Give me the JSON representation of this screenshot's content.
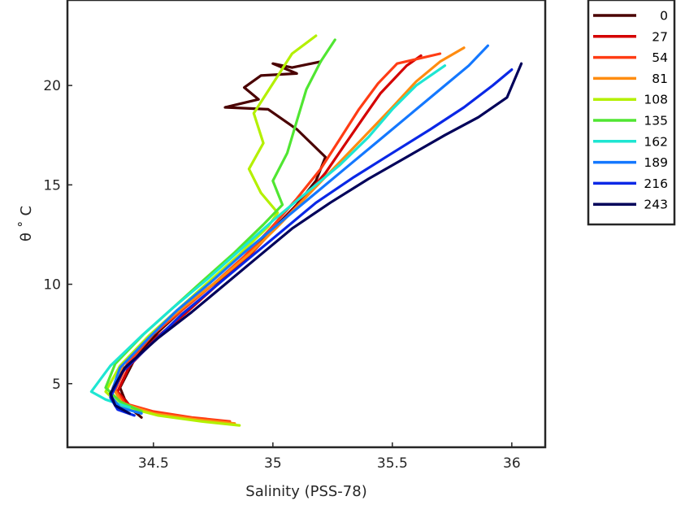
{
  "chart_data": {
    "type": "line",
    "title": "",
    "xlabel": "Salinity (PSS-78)",
    "ylabel": "θ ˚ C",
    "xlim": [
      34.14,
      36.14
    ],
    "ylim": [
      1.8,
      24.3
    ],
    "xticks": [
      34.5,
      35,
      35.5,
      36
    ],
    "xtick_labels": [
      "34.5",
      "35",
      "35.5",
      "36"
    ],
    "yticks": [
      5,
      10,
      15,
      20
    ],
    "ytick_labels": [
      "5",
      "10",
      "15",
      "20"
    ],
    "grid": false,
    "legend_position": "outside-top-right",
    "series": [
      {
        "name": "0",
        "color": "#4a0000",
        "points": [
          [
            34.45,
            3.3
          ],
          [
            34.42,
            3.6
          ],
          [
            34.38,
            4.2
          ],
          [
            34.36,
            4.8
          ],
          [
            34.42,
            6.2
          ],
          [
            34.52,
            7.6
          ],
          [
            34.62,
            8.7
          ],
          [
            34.73,
            9.8
          ],
          [
            34.86,
            11.0
          ],
          [
            34.97,
            12.4
          ],
          [
            35.1,
            14.0
          ],
          [
            35.18,
            15.2
          ],
          [
            35.22,
            16.4
          ],
          [
            35.1,
            17.8
          ],
          [
            34.98,
            18.8
          ],
          [
            34.8,
            18.9
          ],
          [
            34.94,
            19.3
          ],
          [
            34.88,
            19.9
          ],
          [
            34.95,
            20.5
          ],
          [
            35.1,
            20.6
          ],
          [
            35.0,
            21.1
          ],
          [
            35.08,
            20.9
          ],
          [
            35.2,
            21.2
          ]
        ]
      },
      {
        "name": "27",
        "color": "#d40000",
        "points": [
          [
            34.8,
            3.0
          ],
          [
            34.66,
            3.2
          ],
          [
            34.52,
            3.5
          ],
          [
            34.4,
            3.9
          ],
          [
            34.35,
            4.6
          ],
          [
            34.4,
            5.9
          ],
          [
            34.52,
            7.4
          ],
          [
            34.64,
            8.6
          ],
          [
            34.76,
            9.9
          ],
          [
            34.89,
            11.3
          ],
          [
            35.0,
            12.7
          ],
          [
            35.12,
            14.2
          ],
          [
            35.22,
            15.6
          ],
          [
            35.3,
            17.0
          ],
          [
            35.38,
            18.4
          ],
          [
            35.45,
            19.6
          ],
          [
            35.56,
            21.0
          ],
          [
            35.62,
            21.5
          ]
        ]
      },
      {
        "name": "54",
        "color": "#ff3c14",
        "points": [
          [
            34.82,
            3.1
          ],
          [
            34.66,
            3.3
          ],
          [
            34.5,
            3.6
          ],
          [
            34.38,
            4.0
          ],
          [
            34.34,
            4.7
          ],
          [
            34.39,
            6.0
          ],
          [
            34.5,
            7.5
          ],
          [
            34.62,
            8.7
          ],
          [
            34.75,
            10.0
          ],
          [
            34.88,
            11.4
          ],
          [
            34.99,
            12.8
          ],
          [
            35.1,
            14.3
          ],
          [
            35.2,
            15.8
          ],
          [
            35.28,
            17.3
          ],
          [
            35.36,
            18.8
          ],
          [
            35.44,
            20.1
          ],
          [
            35.52,
            21.1
          ],
          [
            35.7,
            21.6
          ]
        ]
      },
      {
        "name": "81",
        "color": "#ff8c10",
        "points": [
          [
            34.84,
            3.0
          ],
          [
            34.68,
            3.2
          ],
          [
            34.5,
            3.5
          ],
          [
            34.37,
            4.0
          ],
          [
            34.33,
            4.8
          ],
          [
            34.38,
            6.1
          ],
          [
            34.5,
            7.6
          ],
          [
            34.62,
            8.8
          ],
          [
            34.76,
            10.1
          ],
          [
            34.9,
            11.5
          ],
          [
            35.02,
            12.9
          ],
          [
            35.14,
            14.4
          ],
          [
            35.26,
            15.9
          ],
          [
            35.38,
            17.4
          ],
          [
            35.5,
            18.9
          ],
          [
            35.6,
            20.2
          ],
          [
            35.7,
            21.2
          ],
          [
            35.8,
            21.9
          ]
        ]
      },
      {
        "name": "108",
        "color": "#b4f000",
        "points": [
          [
            34.86,
            2.9
          ],
          [
            34.7,
            3.1
          ],
          [
            34.52,
            3.4
          ],
          [
            34.36,
            3.9
          ],
          [
            34.3,
            4.6
          ],
          [
            34.36,
            5.9
          ],
          [
            34.48,
            7.4
          ],
          [
            34.6,
            8.7
          ],
          [
            34.72,
            10.0
          ],
          [
            34.86,
            11.5
          ],
          [
            34.98,
            12.9
          ],
          [
            35.02,
            13.6
          ],
          [
            34.95,
            14.6
          ],
          [
            34.9,
            15.8
          ],
          [
            34.96,
            17.1
          ],
          [
            34.92,
            18.6
          ],
          [
            35.0,
            20.1
          ],
          [
            35.08,
            21.6
          ],
          [
            35.18,
            22.5
          ]
        ]
      },
      {
        "name": "135",
        "color": "#50e632",
        "points": [
          [
            34.45,
            3.6
          ],
          [
            34.36,
            4.1
          ],
          [
            34.3,
            4.8
          ],
          [
            34.34,
            6.0
          ],
          [
            34.46,
            7.5
          ],
          [
            34.58,
            8.8
          ],
          [
            34.7,
            10.1
          ],
          [
            34.84,
            11.6
          ],
          [
            34.96,
            13.0
          ],
          [
            35.04,
            14.0
          ],
          [
            35.0,
            15.2
          ],
          [
            35.06,
            16.6
          ],
          [
            35.1,
            18.2
          ],
          [
            35.14,
            19.8
          ],
          [
            35.2,
            21.2
          ],
          [
            35.26,
            22.3
          ]
        ]
      },
      {
        "name": "162",
        "color": "#1ee6d2",
        "points": [
          [
            34.4,
            3.8
          ],
          [
            34.3,
            4.2
          ],
          [
            34.24,
            4.6
          ],
          [
            34.32,
            5.9
          ],
          [
            34.45,
            7.4
          ],
          [
            34.58,
            8.8
          ],
          [
            34.72,
            10.2
          ],
          [
            34.86,
            11.7
          ],
          [
            35.0,
            13.2
          ],
          [
            35.14,
            14.6
          ],
          [
            35.28,
            16.0
          ],
          [
            35.4,
            17.4
          ],
          [
            35.5,
            18.8
          ],
          [
            35.6,
            20.0
          ],
          [
            35.72,
            21.0
          ]
        ]
      },
      {
        "name": "189",
        "color": "#1478ff",
        "points": [
          [
            34.45,
            3.5
          ],
          [
            34.36,
            3.8
          ],
          [
            34.32,
            4.4
          ],
          [
            34.36,
            5.8
          ],
          [
            34.48,
            7.3
          ],
          [
            34.6,
            8.7
          ],
          [
            34.74,
            10.1
          ],
          [
            34.88,
            11.6
          ],
          [
            35.02,
            13.0
          ],
          [
            35.16,
            14.4
          ],
          [
            35.3,
            15.8
          ],
          [
            35.44,
            17.2
          ],
          [
            35.58,
            18.6
          ],
          [
            35.7,
            19.8
          ],
          [
            35.82,
            21.0
          ],
          [
            35.9,
            22.0
          ]
        ]
      },
      {
        "name": "216",
        "color": "#0a28e6",
        "points": [
          [
            34.42,
            3.4
          ],
          [
            34.35,
            3.7
          ],
          [
            34.32,
            4.3
          ],
          [
            34.37,
            5.6
          ],
          [
            34.5,
            7.1
          ],
          [
            34.62,
            8.5
          ],
          [
            34.76,
            9.9
          ],
          [
            34.9,
            11.3
          ],
          [
            35.04,
            12.7
          ],
          [
            35.18,
            14.1
          ],
          [
            35.34,
            15.4
          ],
          [
            35.5,
            16.6
          ],
          [
            35.66,
            17.8
          ],
          [
            35.8,
            18.9
          ],
          [
            35.92,
            20.0
          ],
          [
            36.0,
            20.8
          ]
        ]
      },
      {
        "name": "243",
        "color": "#00005a",
        "points": [
          [
            34.4,
            3.5
          ],
          [
            34.34,
            3.9
          ],
          [
            34.32,
            4.5
          ],
          [
            34.38,
            5.8
          ],
          [
            34.52,
            7.3
          ],
          [
            34.66,
            8.6
          ],
          [
            34.8,
            10.0
          ],
          [
            34.94,
            11.4
          ],
          [
            35.08,
            12.8
          ],
          [
            35.24,
            14.1
          ],
          [
            35.4,
            15.3
          ],
          [
            35.56,
            16.4
          ],
          [
            35.72,
            17.5
          ],
          [
            35.86,
            18.4
          ],
          [
            35.98,
            19.4
          ],
          [
            36.04,
            21.1
          ]
        ]
      }
    ]
  }
}
